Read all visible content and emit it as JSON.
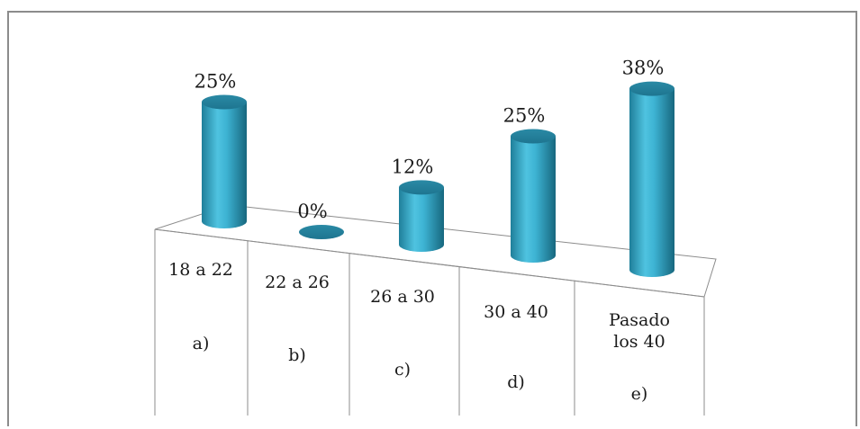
{
  "chart_data": {
    "type": "bar",
    "style": "3d-cylinder",
    "color": "#2aa3c4",
    "categories": [
      [
        "18 a 22",
        "a)"
      ],
      [
        "22 a 26",
        "b)"
      ],
      [
        "26 a 30",
        "c)"
      ],
      [
        "30 a 40",
        "d)"
      ],
      [
        "Pasado",
        "los 40",
        "e)"
      ]
    ],
    "values": [
      25,
      0,
      12,
      25,
      38
    ],
    "data_labels": [
      "25%",
      "0%",
      "12%",
      "25%",
      "38%"
    ],
    "ylim": [
      0,
      38
    ],
    "grid": false,
    "legend": false
  }
}
